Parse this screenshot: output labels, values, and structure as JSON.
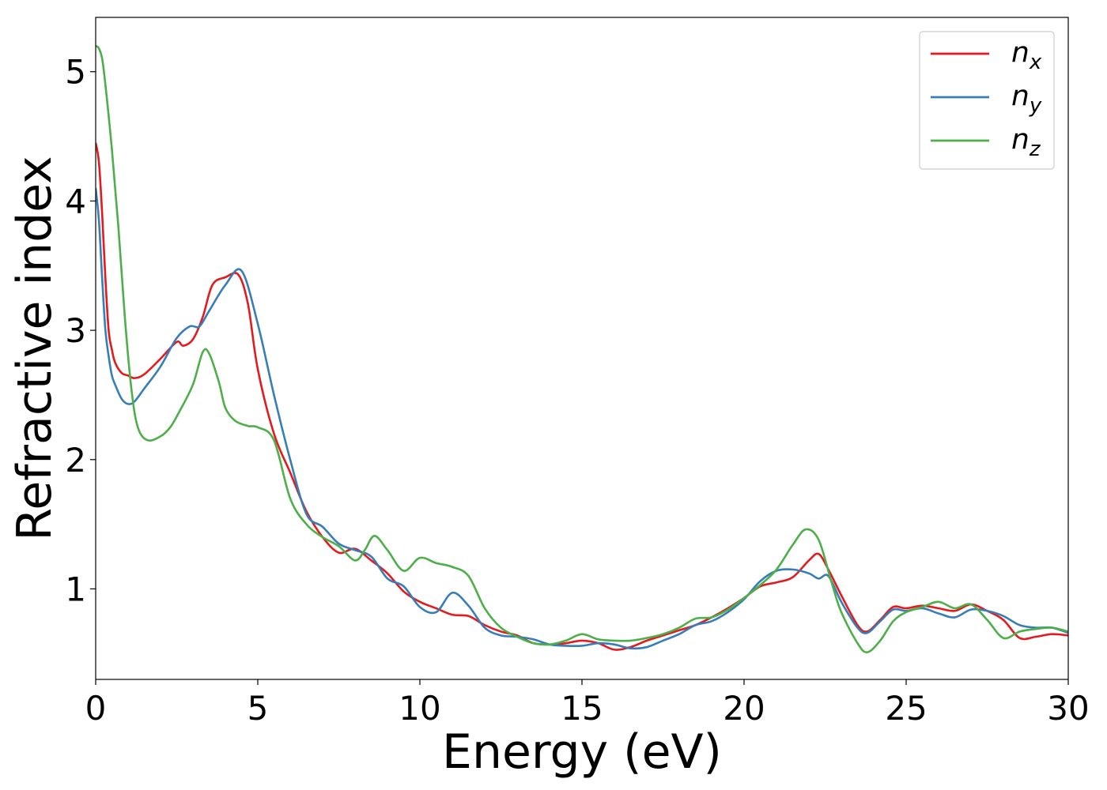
{
  "chart_data": {
    "type": "line",
    "title": "",
    "xlabel": "Energy (eV)",
    "ylabel": "Refractive index",
    "xlim": [
      0,
      30
    ],
    "ylim": [
      0.3,
      5.42
    ],
    "xticks": [
      0,
      5,
      10,
      15,
      20,
      25,
      30
    ],
    "yticks": [
      1,
      2,
      3,
      4,
      5
    ],
    "grid": false,
    "legend_position": "top-right",
    "series": [
      {
        "name": "n",
        "subscript": "x",
        "color": "#e41a1c",
        "x": [
          0,
          0.1,
          0.2,
          0.3,
          0.4,
          0.5,
          0.6,
          0.8,
          1.0,
          1.2,
          1.5,
          2.0,
          2.5,
          2.7,
          3.0,
          3.3,
          3.6,
          4.0,
          4.4,
          4.7,
          5.0,
          5.5,
          6.0,
          6.5,
          7.0,
          7.5,
          8.0,
          8.5,
          9.0,
          9.5,
          10.0,
          10.5,
          11.0,
          11.5,
          12.0,
          12.5,
          13.0,
          13.5,
          14.0,
          14.5,
          15.0,
          15.5,
          16.0,
          16.5,
          17.0,
          17.5,
          18.0,
          18.5,
          19.0,
          19.5,
          20.0,
          20.5,
          21.0,
          21.5,
          22.0,
          22.3,
          22.6,
          23.0,
          23.5,
          23.8,
          24.2,
          24.6,
          25.0,
          25.5,
          26.0,
          26.5,
          27.0,
          27.5,
          28.0,
          28.5,
          29.0,
          29.5,
          30.0
        ],
        "values": [
          4.45,
          4.3,
          3.9,
          3.4,
          3.0,
          2.85,
          2.75,
          2.67,
          2.65,
          2.63,
          2.66,
          2.78,
          2.91,
          2.88,
          2.93,
          3.1,
          3.35,
          3.41,
          3.43,
          3.2,
          2.7,
          2.2,
          1.9,
          1.6,
          1.4,
          1.28,
          1.31,
          1.22,
          1.12,
          0.98,
          0.9,
          0.85,
          0.8,
          0.79,
          0.72,
          0.67,
          0.64,
          0.58,
          0.57,
          0.58,
          0.6,
          0.58,
          0.53,
          0.55,
          0.6,
          0.64,
          0.68,
          0.72,
          0.78,
          0.85,
          0.93,
          1.02,
          1.05,
          1.09,
          1.22,
          1.27,
          1.15,
          0.95,
          0.72,
          0.67,
          0.76,
          0.86,
          0.85,
          0.87,
          0.85,
          0.83,
          0.88,
          0.83,
          0.76,
          0.62,
          0.63,
          0.65,
          0.64
        ]
      },
      {
        "name": "n",
        "subscript": "y",
        "color": "#377eb8",
        "x": [
          0,
          0.1,
          0.2,
          0.3,
          0.4,
          0.5,
          0.6,
          0.8,
          1.0,
          1.2,
          1.5,
          2.0,
          2.5,
          2.9,
          3.2,
          3.5,
          4.0,
          4.5,
          5.0,
          5.5,
          6.0,
          6.5,
          7.0,
          7.5,
          8.0,
          8.5,
          9.0,
          9.5,
          10.0,
          10.5,
          11.0,
          11.5,
          12.0,
          12.5,
          13.0,
          13.5,
          14.0,
          14.5,
          15.0,
          15.5,
          16.0,
          16.5,
          17.0,
          17.5,
          18.0,
          18.5,
          19.0,
          19.5,
          20.0,
          20.5,
          21.0,
          21.5,
          22.0,
          22.3,
          22.6,
          23.0,
          23.5,
          23.8,
          24.2,
          24.6,
          25.0,
          25.5,
          26.0,
          26.5,
          27.0,
          27.5,
          28.0,
          28.5,
          29.0,
          29.5,
          30.0
        ],
        "values": [
          4.1,
          3.85,
          3.4,
          3.0,
          2.8,
          2.65,
          2.58,
          2.47,
          2.43,
          2.45,
          2.55,
          2.72,
          2.94,
          3.03,
          3.03,
          3.15,
          3.35,
          3.46,
          3.05,
          2.5,
          2.0,
          1.58,
          1.48,
          1.35,
          1.3,
          1.25,
          1.08,
          1.02,
          0.86,
          0.82,
          0.97,
          0.87,
          0.7,
          0.64,
          0.63,
          0.61,
          0.57,
          0.56,
          0.56,
          0.58,
          0.57,
          0.54,
          0.55,
          0.6,
          0.65,
          0.72,
          0.75,
          0.82,
          0.92,
          1.06,
          1.14,
          1.15,
          1.12,
          1.08,
          1.1,
          0.9,
          0.7,
          0.66,
          0.75,
          0.84,
          0.83,
          0.85,
          0.81,
          0.78,
          0.84,
          0.83,
          0.79,
          0.72,
          0.7,
          0.7,
          0.66
        ]
      },
      {
        "name": "n",
        "subscript": "z",
        "color": "#4daf4a",
        "x": [
          0,
          0.1,
          0.2,
          0.3,
          0.5,
          0.7,
          0.9,
          1.1,
          1.3,
          1.6,
          2.0,
          2.3,
          2.6,
          3.0,
          3.3,
          3.5,
          3.8,
          4.0,
          4.3,
          4.7,
          5.0,
          5.5,
          6.0,
          6.5,
          7.0,
          7.5,
          8.0,
          8.3,
          8.6,
          9.0,
          9.5,
          10.0,
          10.5,
          11.0,
          11.5,
          12.0,
          12.5,
          13.0,
          13.5,
          14.0,
          14.5,
          15.0,
          15.5,
          16.0,
          16.5,
          17.0,
          17.5,
          18.0,
          18.5,
          19.0,
          19.5,
          20.0,
          20.5,
          21.0,
          21.5,
          21.9,
          22.3,
          22.7,
          23.0,
          23.5,
          23.8,
          24.2,
          24.6,
          25.0,
          25.5,
          26.0,
          26.5,
          27.0,
          27.5,
          28.0,
          28.5,
          29.0,
          29.5,
          30.0
        ],
        "values": [
          5.2,
          5.18,
          5.1,
          4.9,
          4.4,
          3.8,
          3.1,
          2.55,
          2.25,
          2.15,
          2.18,
          2.25,
          2.38,
          2.58,
          2.83,
          2.82,
          2.6,
          2.4,
          2.3,
          2.26,
          2.25,
          2.15,
          1.7,
          1.5,
          1.4,
          1.33,
          1.22,
          1.3,
          1.41,
          1.3,
          1.14,
          1.24,
          1.2,
          1.17,
          1.1,
          0.85,
          0.7,
          0.63,
          0.58,
          0.57,
          0.6,
          0.65,
          0.61,
          0.6,
          0.6,
          0.62,
          0.65,
          0.7,
          0.77,
          0.78,
          0.84,
          0.93,
          1.03,
          1.15,
          1.34,
          1.46,
          1.38,
          1.05,
          0.82,
          0.58,
          0.51,
          0.6,
          0.75,
          0.82,
          0.86,
          0.9,
          0.85,
          0.88,
          0.76,
          0.62,
          0.67,
          0.69,
          0.7,
          0.67
        ]
      }
    ]
  }
}
